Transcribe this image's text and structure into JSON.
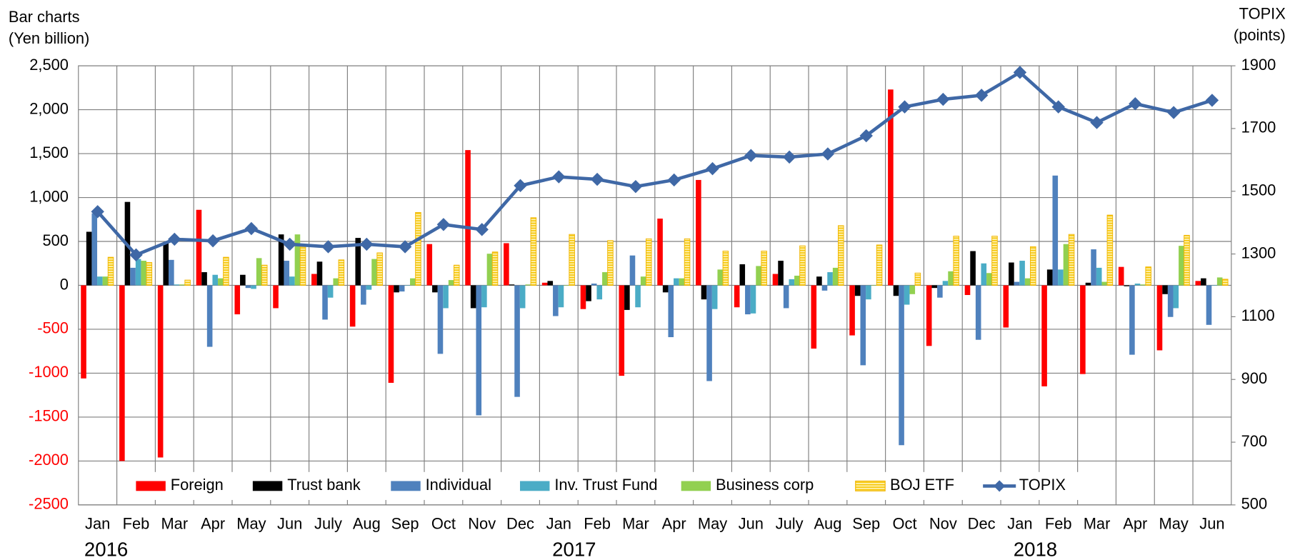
{
  "chart_data": {
    "type": "bar-line",
    "y_label": [
      "Bar charts",
      "(Yen billion)"
    ],
    "y2_label": [
      "TOPIX",
      "(points)"
    ],
    "categories": [
      "Jan",
      "Feb",
      "Mar",
      "Apr",
      "May",
      "Jun",
      "July",
      "Aug",
      "Sep",
      "Oct",
      "Nov",
      "Dec",
      "Jan",
      "Feb",
      "Mar",
      "Apr",
      "May",
      "Jun",
      "July",
      "Aug",
      "Sep",
      "Oct",
      "Nov",
      "Dec",
      "Jan",
      "Feb",
      "Mar",
      "Apr",
      "May",
      "Jun"
    ],
    "year_labels": [
      "2016",
      "2017",
      "2018"
    ],
    "ylim": [
      -2500,
      2500
    ],
    "yticks": [
      -2500,
      -2000,
      -1500,
      -1000,
      -500,
      0,
      500,
      {
        "value": 1000,
        "label": "1,000"
      },
      {
        "value": 1500,
        "label": "1,500"
      },
      {
        "value": 2000,
        "label": "2,000"
      },
      {
        "value": 2500,
        "label": "2,500"
      }
    ],
    "y2lim": [
      500,
      1900
    ],
    "y2ticks": [
      500,
      700,
      900,
      1100,
      1300,
      1500,
      1700,
      1900
    ],
    "grid": true,
    "series": [
      {
        "name": "Foreign",
        "color": "#ff0000",
        "values": [
          -1060,
          -2000,
          -1960,
          860,
          -330,
          -260,
          130,
          -470,
          -1110,
          470,
          1540,
          480,
          30,
          -270,
          -1030,
          760,
          1200,
          -250,
          130,
          -720,
          -570,
          2230,
          -690,
          -110,
          -480,
          -1150,
          -1010,
          210,
          -740,
          50
        ]
      },
      {
        "name": "Trust bank",
        "color": "#000000",
        "values": [
          610,
          950,
          490,
          150,
          120,
          580,
          270,
          540,
          -80,
          -80,
          -260,
          10,
          50,
          -180,
          -280,
          -80,
          -160,
          240,
          280,
          100,
          -120,
          -120,
          -30,
          390,
          260,
          180,
          30,
          -10,
          -100,
          80
        ]
      },
      {
        "name": "Individual",
        "color": "#4f81bd",
        "values": [
          820,
          200,
          290,
          -700,
          -30,
          280,
          -390,
          -220,
          -70,
          -780,
          -1480,
          -1270,
          -350,
          20,
          340,
          -590,
          -1090,
          -330,
          -260,
          -60,
          -910,
          -1820,
          -140,
          -620,
          40,
          1250,
          410,
          -790,
          -360,
          -450
        ]
      },
      {
        "name": "Inv. Trust Fund",
        "color": "#4bacc6",
        "values": [
          100,
          300,
          10,
          120,
          -40,
          100,
          -140,
          -50,
          0,
          -260,
          -250,
          -260,
          -250,
          -160,
          -250,
          80,
          -270,
          -320,
          70,
          150,
          -160,
          -220,
          50,
          250,
          280,
          180,
          200,
          20,
          -260,
          0
        ]
      },
      {
        "name": "Business corp",
        "color": "#92d050",
        "values": [
          100,
          280,
          10,
          80,
          310,
          580,
          80,
          300,
          80,
          60,
          360,
          10,
          0,
          150,
          100,
          80,
          180,
          220,
          110,
          200,
          0,
          -100,
          160,
          140,
          80,
          470,
          40,
          10,
          450,
          90
        ]
      },
      {
        "name": "BOJ ETF",
        "color": "#ffd966",
        "values": [
          320,
          260,
          60,
          320,
          230,
          440,
          290,
          370,
          830,
          230,
          380,
          770,
          580,
          510,
          530,
          530,
          390,
          390,
          450,
          680,
          460,
          140,
          560,
          560,
          440,
          580,
          800,
          210,
          570,
          70
        ]
      },
      {
        "name": "TOPIX",
        "color": "#3f68a6",
        "axis": "y2",
        "values": [
          1435,
          1297,
          1347,
          1342,
          1381,
          1331,
          1323,
          1331,
          1323,
          1394,
          1378,
          1518,
          1546,
          1538,
          1515,
          1536,
          1572,
          1614,
          1609,
          1619,
          1677,
          1769,
          1793,
          1806,
          1879,
          1769,
          1719,
          1779,
          1751,
          1790
        ]
      }
    ]
  }
}
